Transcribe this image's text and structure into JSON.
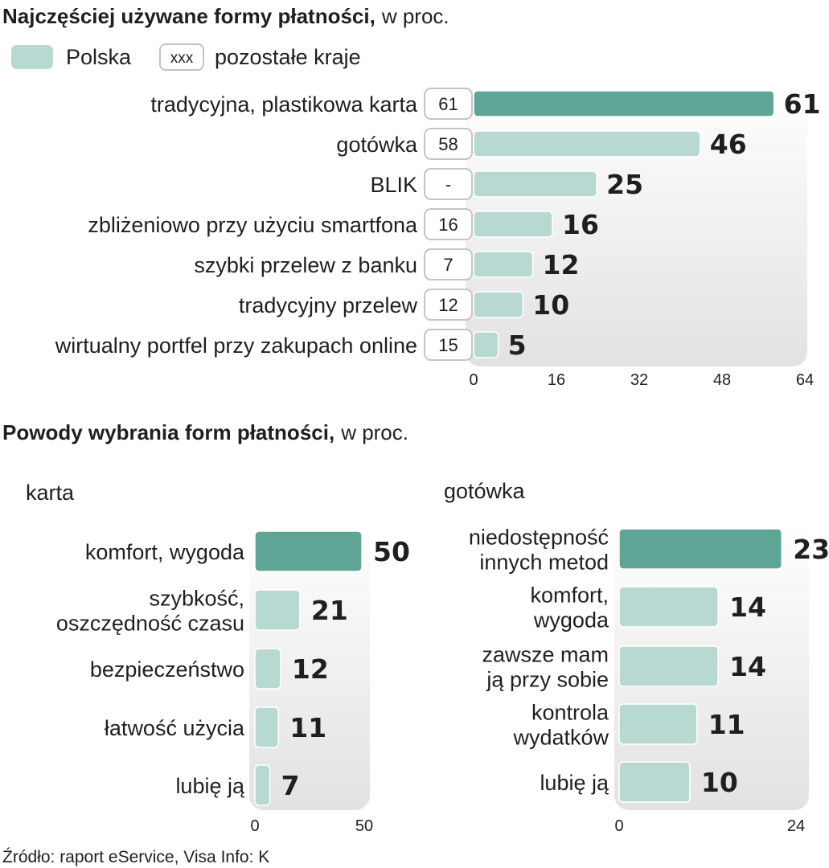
{
  "colors": {
    "highlight": "#5ea595",
    "bar": "#b7d9d2",
    "panel_top": "#ffffff",
    "panel_bottom": "#e3e3e3",
    "box_border": "#c4c4c4"
  },
  "chart_data": [
    {
      "type": "bar",
      "orientation": "horizontal",
      "title": "Najczęściej używane formy płatności,",
      "title_suffix": "w proc.",
      "legend": {
        "polska": "Polska",
        "box_sample": "xxx",
        "other": "pozostałe kraje"
      },
      "categories": [
        "tradycyjna, plastikowa karta",
        "gotówka",
        "BLIK",
        "zbliżeniowo przy użyciu smartfona",
        "szybki przelew z banku",
        "tradycyjny przelew",
        "wirtualny portfel przy zakupach online"
      ],
      "series": [
        {
          "name": "Polska",
          "values": [
            61,
            46,
            25,
            16,
            12,
            10,
            5
          ]
        },
        {
          "name": "pozostałe kraje",
          "values": [
            "61",
            "58",
            "-",
            "16",
            "7",
            "12",
            "15"
          ]
        }
      ],
      "xlim": [
        0,
        64
      ],
      "ticks": [
        "0",
        "16",
        "32",
        "48",
        "64"
      ]
    },
    {
      "type": "bar",
      "orientation": "horizontal",
      "title": "Powody wybrania form płatności,",
      "title_suffix": "w proc.",
      "subtitle": "karta",
      "categories": [
        [
          "komfort, wygoda"
        ],
        [
          "szybkość,",
          "oszczędność czasu"
        ],
        [
          "bezpieczeństwo"
        ],
        [
          "łatwość użycia"
        ],
        [
          "lubię ją"
        ]
      ],
      "values": [
        50,
        21,
        12,
        11,
        7
      ],
      "xlim": [
        0,
        50
      ],
      "ticks": [
        "0",
        "50"
      ]
    },
    {
      "type": "bar",
      "orientation": "horizontal",
      "subtitle": "gotówka",
      "categories": [
        [
          "niedostępność",
          "innych metod"
        ],
        [
          "komfort,",
          "wygoda"
        ],
        [
          "zawsze mam",
          "ją przy sobie"
        ],
        [
          "kontrola",
          "wydatków"
        ],
        [
          "lubię ją"
        ]
      ],
      "values": [
        23,
        14,
        14,
        11,
        10
      ],
      "xlim": [
        0,
        24
      ],
      "ticks": [
        "0",
        "24"
      ]
    }
  ],
  "source": "Źródło: raport eService, Visa  Info: K"
}
